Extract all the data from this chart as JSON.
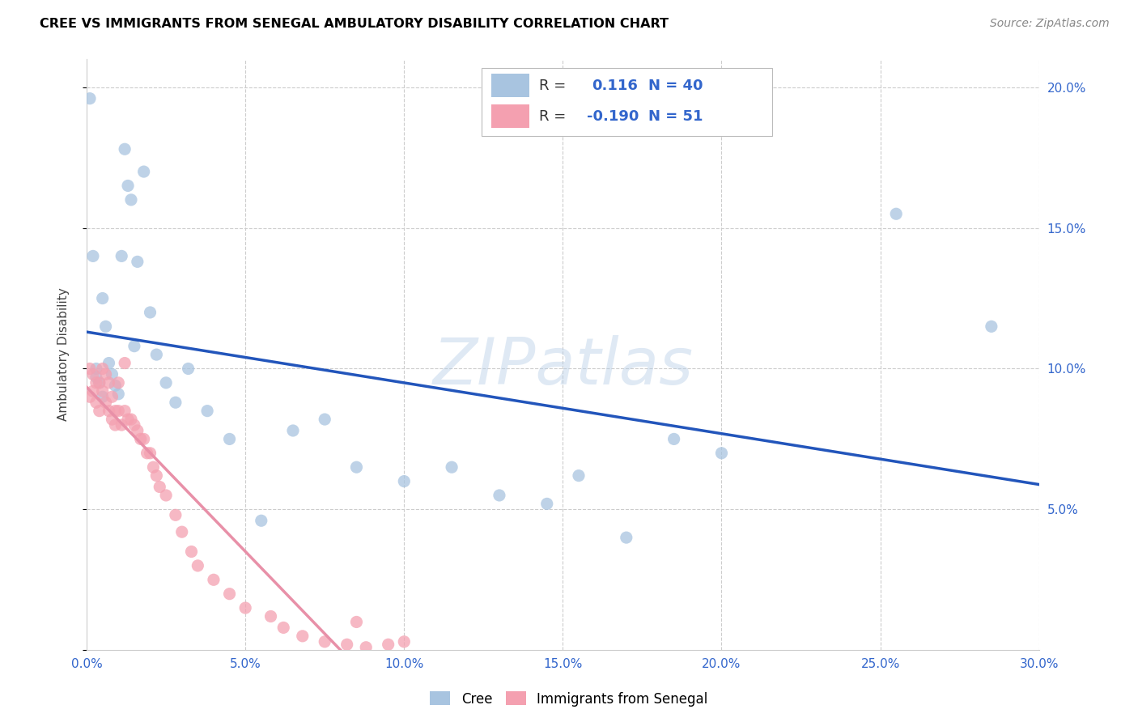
{
  "title": "CREE VS IMMIGRANTS FROM SENEGAL AMBULATORY DISABILITY CORRELATION CHART",
  "source": "Source: ZipAtlas.com",
  "ylabel": "Ambulatory Disability",
  "watermark": "ZIPatlas",
  "xmin": 0.0,
  "xmax": 0.3,
  "ymin": 0.0,
  "ymax": 0.21,
  "xticks": [
    0.0,
    0.05,
    0.1,
    0.15,
    0.2,
    0.25,
    0.3
  ],
  "xtick_labels": [
    "0.0%",
    "5.0%",
    "10.0%",
    "15.0%",
    "20.0%",
    "25.0%",
    "30.0%"
  ],
  "yticks": [
    0.0,
    0.05,
    0.1,
    0.15,
    0.2
  ],
  "ytick_labels": [
    "",
    "5.0%",
    "10.0%",
    "15.0%",
    "20.0%"
  ],
  "cree_color": "#a8c4e0",
  "senegal_color": "#f4a0b0",
  "cree_line_color": "#2255bb",
  "senegal_line_color": "#e890a8",
  "legend_R_cree": "0.116",
  "legend_N_cree": "40",
  "legend_R_senegal": "-0.190",
  "legend_N_senegal": "51",
  "cree_x": [
    0.001,
    0.002,
    0.003,
    0.003,
    0.004,
    0.005,
    0.005,
    0.006,
    0.007,
    0.008,
    0.009,
    0.01,
    0.011,
    0.012,
    0.013,
    0.014,
    0.015,
    0.016,
    0.018,
    0.02,
    0.022,
    0.025,
    0.028,
    0.032,
    0.038,
    0.045,
    0.055,
    0.065,
    0.075,
    0.085,
    0.1,
    0.115,
    0.13,
    0.145,
    0.155,
    0.17,
    0.185,
    0.2,
    0.255,
    0.285
  ],
  "cree_y": [
    0.196,
    0.14,
    0.1,
    0.097,
    0.095,
    0.125,
    0.09,
    0.115,
    0.102,
    0.098,
    0.094,
    0.091,
    0.14,
    0.178,
    0.165,
    0.16,
    0.108,
    0.138,
    0.17,
    0.12,
    0.105,
    0.095,
    0.088,
    0.1,
    0.085,
    0.075,
    0.046,
    0.078,
    0.082,
    0.065,
    0.06,
    0.065,
    0.055,
    0.052,
    0.062,
    0.04,
    0.075,
    0.07,
    0.155,
    0.115
  ],
  "senegal_x": [
    0.001,
    0.001,
    0.002,
    0.002,
    0.003,
    0.003,
    0.004,
    0.004,
    0.005,
    0.005,
    0.006,
    0.006,
    0.007,
    0.007,
    0.008,
    0.008,
    0.009,
    0.009,
    0.01,
    0.01,
    0.011,
    0.012,
    0.012,
    0.013,
    0.014,
    0.015,
    0.016,
    0.017,
    0.018,
    0.019,
    0.02,
    0.021,
    0.022,
    0.023,
    0.025,
    0.028,
    0.03,
    0.033,
    0.035,
    0.04,
    0.045,
    0.05,
    0.058,
    0.062,
    0.068,
    0.075,
    0.082,
    0.088,
    0.095,
    0.1,
    0.085
  ],
  "senegal_y": [
    0.1,
    0.09,
    0.098,
    0.092,
    0.095,
    0.088,
    0.095,
    0.085,
    0.1,
    0.092,
    0.098,
    0.088,
    0.095,
    0.085,
    0.09,
    0.082,
    0.085,
    0.08,
    0.095,
    0.085,
    0.08,
    0.102,
    0.085,
    0.082,
    0.082,
    0.08,
    0.078,
    0.075,
    0.075,
    0.07,
    0.07,
    0.065,
    0.062,
    0.058,
    0.055,
    0.048,
    0.042,
    0.035,
    0.03,
    0.025,
    0.02,
    0.015,
    0.012,
    0.008,
    0.005,
    0.003,
    0.002,
    0.001,
    0.002,
    0.003,
    0.01
  ]
}
